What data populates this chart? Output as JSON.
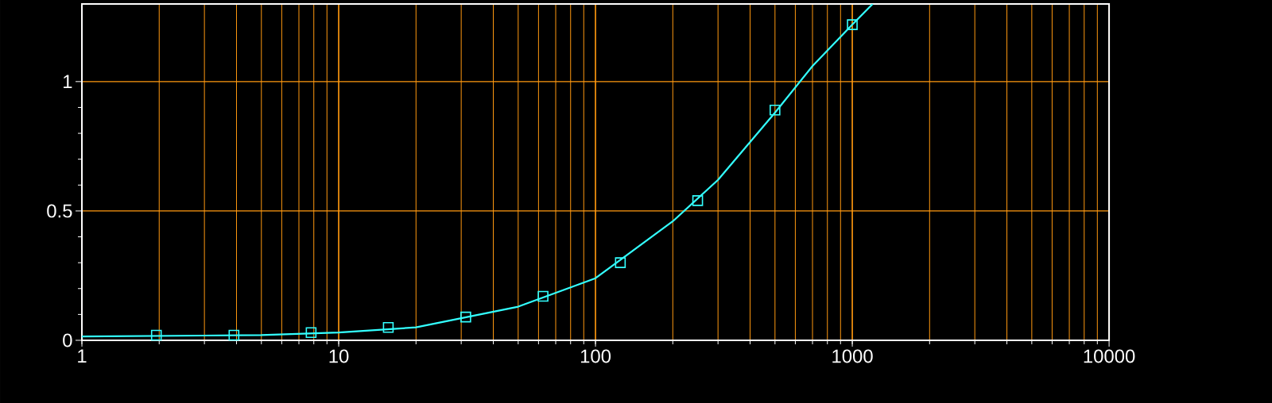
{
  "chart_data": {
    "type": "scatter",
    "series": [
      {
        "marker": "square",
        "color": "#33ffff",
        "x": [
          1.95,
          3.91,
          7.81,
          15.6,
          31.25,
          62.5,
          125,
          250,
          500,
          1000
        ],
        "values": [
          0.02,
          0.02,
          0.03,
          0.05,
          0.09,
          0.17,
          0.3,
          0.54,
          0.89,
          1.22
        ]
      },
      {
        "type": "line",
        "marker": "none",
        "color": "#33ffff",
        "x": [
          1,
          5,
          10,
          20,
          50,
          100,
          200,
          300,
          500,
          700,
          1000,
          1200
        ],
        "values": [
          0.015,
          0.02,
          0.03,
          0.05,
          0.13,
          0.24,
          0.46,
          0.62,
          0.88,
          1.06,
          1.22,
          1.3
        ]
      }
    ],
    "xlim": [
      1,
      10000
    ],
    "xticks": [
      1,
      10,
      100,
      1000,
      10000
    ],
    "ylim": [
      0,
      1.3
    ],
    "yticks": [
      0,
      0.5,
      1
    ],
    "log": "x",
    "grid": true
  }
}
